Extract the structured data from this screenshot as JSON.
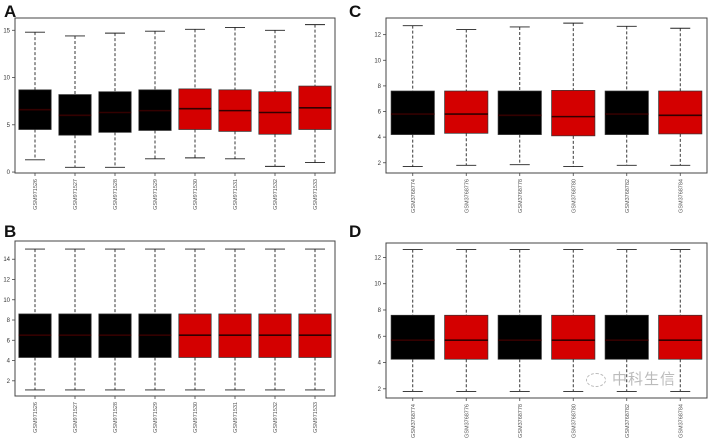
{
  "colors": {
    "control": "#000000",
    "treatment": "#d40000"
  },
  "chart_data": [
    {
      "panel": "A",
      "type": "box",
      "categories": [
        "GSM971526",
        "GSM971527",
        "GSM971528",
        "GSM971529",
        "GSM971530",
        "GSM971531",
        "GSM971532",
        "GSM971533"
      ],
      "groups": [
        "control",
        "control",
        "control",
        "control",
        "treatment",
        "treatment",
        "treatment",
        "treatment"
      ],
      "boxes": [
        {
          "min": 1.3,
          "q1": 4.5,
          "median": 6.6,
          "q3": 8.7,
          "max": 14.8
        },
        {
          "min": 0.5,
          "q1": 3.9,
          "median": 6.0,
          "q3": 8.2,
          "max": 14.4
        },
        {
          "min": 0.5,
          "q1": 4.2,
          "median": 6.3,
          "q3": 8.5,
          "max": 14.7
        },
        {
          "min": 1.4,
          "q1": 4.4,
          "median": 6.5,
          "q3": 8.7,
          "max": 14.9
        },
        {
          "min": 1.5,
          "q1": 4.5,
          "median": 6.7,
          "q3": 8.8,
          "max": 15.1
        },
        {
          "min": 1.4,
          "q1": 4.3,
          "median": 6.5,
          "q3": 8.7,
          "max": 15.3
        },
        {
          "min": 0.6,
          "q1": 4.0,
          "median": 6.3,
          "q3": 8.5,
          "max": 15.0
        },
        {
          "min": 1.0,
          "q1": 4.5,
          "median": 6.8,
          "q3": 9.1,
          "max": 15.6
        }
      ],
      "yticks": [
        "0",
        "5",
        "10",
        "15"
      ],
      "ylim": [
        -0.1,
        16.3
      ]
    },
    {
      "panel": "B",
      "type": "box",
      "categories": [
        "GSM971526",
        "GSM971527",
        "GSM971528",
        "GSM971529",
        "GSM971530",
        "GSM971531",
        "GSM971532",
        "GSM971533"
      ],
      "groups": [
        "control",
        "control",
        "control",
        "control",
        "treatment",
        "treatment",
        "treatment",
        "treatment"
      ],
      "boxes": [
        {
          "min": 1.1,
          "q1": 4.3,
          "median": 6.5,
          "q3": 8.6,
          "max": 15.0
        },
        {
          "min": 1.1,
          "q1": 4.3,
          "median": 6.5,
          "q3": 8.6,
          "max": 15.0
        },
        {
          "min": 1.1,
          "q1": 4.3,
          "median": 6.5,
          "q3": 8.6,
          "max": 15.0
        },
        {
          "min": 1.1,
          "q1": 4.3,
          "median": 6.5,
          "q3": 8.6,
          "max": 15.0
        },
        {
          "min": 1.1,
          "q1": 4.3,
          "median": 6.5,
          "q3": 8.6,
          "max": 15.0
        },
        {
          "min": 1.1,
          "q1": 4.3,
          "median": 6.5,
          "q3": 8.6,
          "max": 15.0
        },
        {
          "min": 1.1,
          "q1": 4.3,
          "median": 6.5,
          "q3": 8.6,
          "max": 15.0
        },
        {
          "min": 1.1,
          "q1": 4.3,
          "median": 6.5,
          "q3": 8.6,
          "max": 15.0
        }
      ],
      "yticks": [
        "2",
        "4",
        "6",
        "8",
        "10",
        "12",
        "14"
      ],
      "ylim": [
        0.5,
        15.8
      ]
    },
    {
      "panel": "C",
      "type": "box",
      "categories": [
        "GSM3768774",
        "GSM3768776",
        "GSM3768778",
        "GSM3768780",
        "GSM3768782",
        "GSM3768784"
      ],
      "groups": [
        "control",
        "treatment",
        "control",
        "treatment",
        "control",
        "treatment"
      ],
      "boxes": [
        {
          "min": 1.7,
          "q1": 4.2,
          "median": 5.8,
          "q3": 7.6,
          "max": 12.7
        },
        {
          "min": 1.8,
          "q1": 4.3,
          "median": 5.8,
          "q3": 7.6,
          "max": 12.4
        },
        {
          "min": 1.85,
          "q1": 4.2,
          "median": 5.7,
          "q3": 7.6,
          "max": 12.6
        },
        {
          "min": 1.7,
          "q1": 4.1,
          "median": 5.6,
          "q3": 7.65,
          "max": 12.9
        },
        {
          "min": 1.8,
          "q1": 4.2,
          "median": 5.8,
          "q3": 7.6,
          "max": 12.65
        },
        {
          "min": 1.8,
          "q1": 4.25,
          "median": 5.7,
          "q3": 7.6,
          "max": 12.5
        }
      ],
      "yticks": [
        "2",
        "4",
        "6",
        "8",
        "10",
        "12"
      ],
      "ylim": [
        1.2,
        13.3
      ]
    },
    {
      "panel": "D",
      "type": "box",
      "categories": [
        "GSM3768774",
        "GSM3768776",
        "GSM3768778",
        "GSM3768780",
        "GSM3768782",
        "GSM3768784"
      ],
      "groups": [
        "control",
        "treatment",
        "control",
        "treatment",
        "control",
        "treatment"
      ],
      "boxes": [
        {
          "min": 1.8,
          "q1": 4.25,
          "median": 5.7,
          "q3": 7.6,
          "max": 12.6
        },
        {
          "min": 1.8,
          "q1": 4.25,
          "median": 5.7,
          "q3": 7.6,
          "max": 12.6
        },
        {
          "min": 1.8,
          "q1": 4.25,
          "median": 5.7,
          "q3": 7.6,
          "max": 12.6
        },
        {
          "min": 1.8,
          "q1": 4.25,
          "median": 5.7,
          "q3": 7.6,
          "max": 12.6
        },
        {
          "min": 1.8,
          "q1": 4.25,
          "median": 5.7,
          "q3": 7.6,
          "max": 12.6
        },
        {
          "min": 1.8,
          "q1": 4.25,
          "median": 5.7,
          "q3": 7.6,
          "max": 12.6
        }
      ],
      "yticks": [
        "2",
        "4",
        "6",
        "8",
        "10",
        "12"
      ],
      "ylim": [
        1.3,
        13.1
      ]
    }
  ],
  "watermark": "中科生信"
}
